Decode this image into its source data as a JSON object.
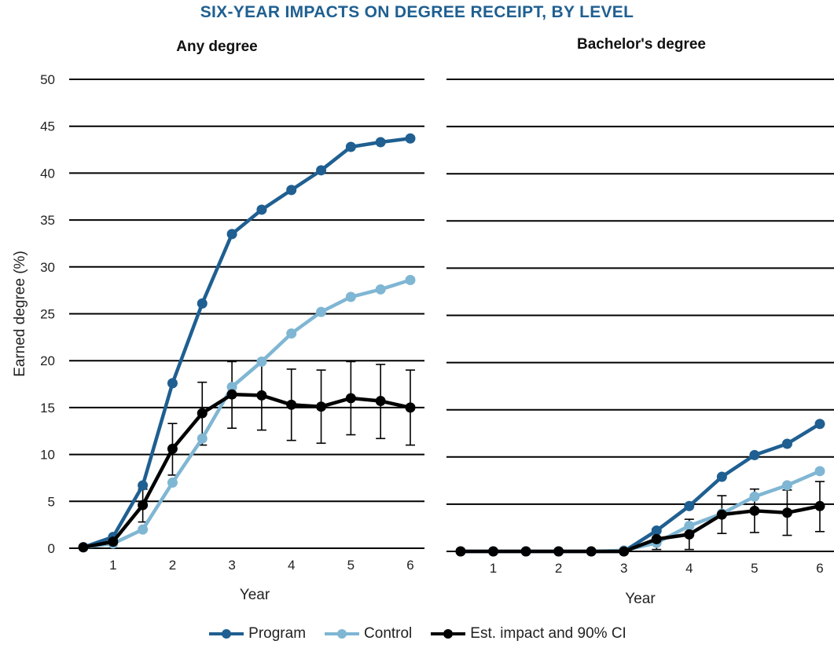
{
  "title": "SIX-YEAR IMPACTS ON DEGREE RECEIPT, BY LEVEL",
  "colors": {
    "program": "#1f5f91",
    "control": "#7fb6d3",
    "impact": "#000000",
    "title": "#1f5f91"
  },
  "legend": [
    "Program",
    "Control",
    "Est. impact and 90% CI"
  ],
  "chart_data": [
    {
      "type": "line",
      "title": "Any degree",
      "xlabel": "Year",
      "ylabel": "Earned degree (%)",
      "x": [
        0.5,
        1,
        1.5,
        2,
        2.5,
        3,
        3.5,
        4,
        4.5,
        5,
        5.5,
        6
      ],
      "xticks": [
        1,
        2,
        3,
        4,
        5,
        6
      ],
      "yticks": [
        0,
        5,
        10,
        15,
        20,
        25,
        30,
        35,
        40,
        45,
        50
      ],
      "ylim": [
        0,
        50
      ],
      "grid": true,
      "series": [
        {
          "name": "Program",
          "values": [
            0.1,
            1.2,
            6.7,
            17.6,
            26.1,
            33.5,
            36.1,
            38.2,
            40.3,
            42.8,
            43.3,
            43.7
          ]
        },
        {
          "name": "Control",
          "values": [
            0.1,
            0.5,
            2.0,
            7.0,
            11.7,
            17.2,
            19.9,
            22.9,
            25.2,
            26.8,
            27.6,
            28.6
          ]
        },
        {
          "name": "Est. impact and 90% CI",
          "values": [
            0.1,
            0.7,
            4.6,
            10.6,
            14.4,
            16.4,
            16.3,
            15.3,
            15.1,
            16.0,
            15.7,
            15.0
          ],
          "ci_low": [
            null,
            null,
            2.8,
            7.8,
            11.0,
            12.8,
            12.6,
            11.5,
            11.2,
            12.1,
            11.7,
            11.0
          ],
          "ci_high": [
            null,
            null,
            6.3,
            13.3,
            17.7,
            19.9,
            19.9,
            19.1,
            19.0,
            19.9,
            19.6,
            19.0
          ]
        }
      ]
    },
    {
      "type": "line",
      "title": "Bachelor's degree",
      "xlabel": "Year",
      "x": [
        0.5,
        1,
        1.5,
        2,
        2.5,
        3,
        3.5,
        4,
        4.5,
        5,
        5.5,
        6
      ],
      "xticks": [
        1,
        2,
        3,
        4,
        5,
        6
      ],
      "ylim": [
        0,
        50
      ],
      "grid": true,
      "series": [
        {
          "name": "Program",
          "values": [
            0,
            0,
            0,
            0,
            0,
            0,
            2.2,
            4.8,
            7.9,
            10.2,
            11.4,
            13.5
          ]
        },
        {
          "name": "Control",
          "values": [
            0,
            0,
            0,
            0,
            0,
            0.1,
            0.9,
            2.7,
            4.0,
            5.8,
            7.0,
            8.5
          ]
        },
        {
          "name": "Est. impact and 90% CI",
          "values": [
            0,
            0,
            0,
            0,
            0,
            0,
            1.3,
            1.8,
            3.9,
            4.3,
            4.1,
            4.8
          ],
          "ci_low": [
            null,
            null,
            null,
            null,
            null,
            null,
            0.2,
            0.2,
            1.9,
            2.0,
            1.7,
            2.1
          ],
          "ci_high": [
            null,
            null,
            null,
            null,
            null,
            null,
            2.4,
            3.4,
            5.9,
            6.6,
            6.5,
            7.4
          ]
        }
      ]
    }
  ]
}
